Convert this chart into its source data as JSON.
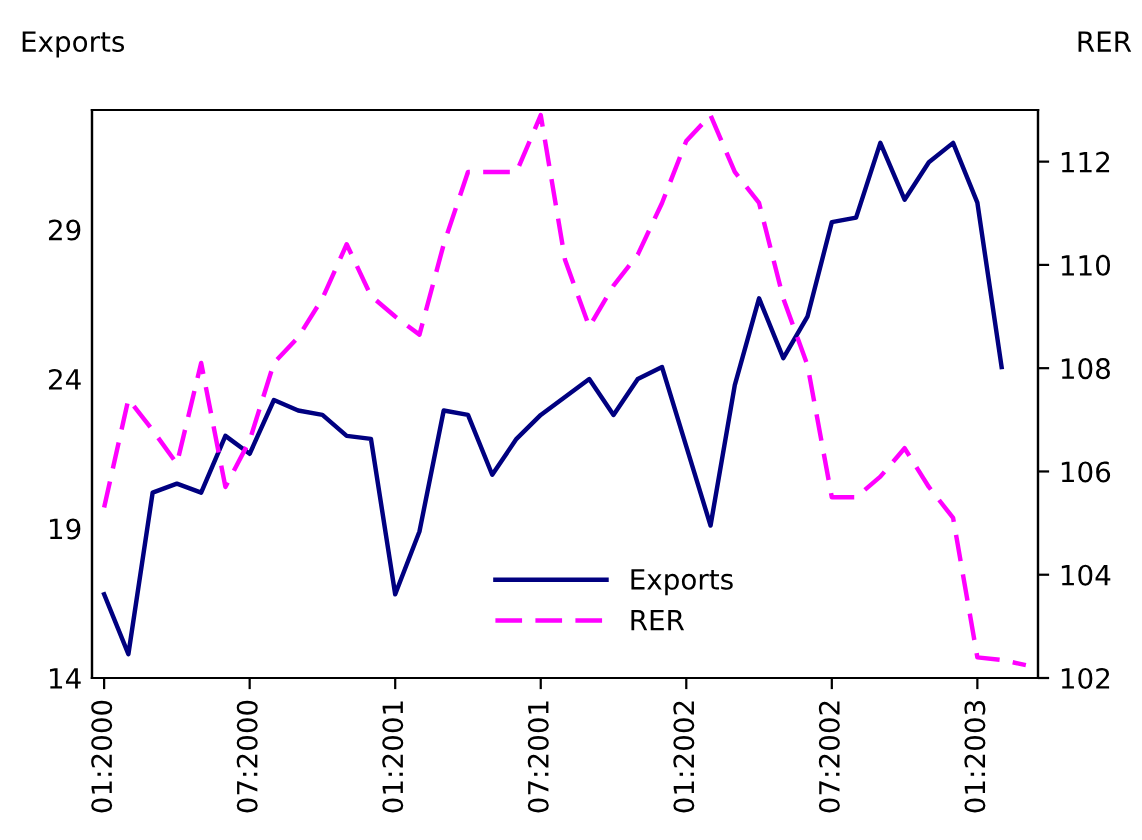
{
  "chart_data": {
    "type": "line",
    "xlabel": null,
    "ylabel": "Exports",
    "y2label": "RER",
    "categories": [
      "01:2000",
      null,
      null,
      null,
      null,
      null,
      "07:2000",
      null,
      null,
      null,
      null,
      null,
      "01:2001",
      null,
      null,
      null,
      null,
      null,
      "07:2001",
      null,
      null,
      null,
      null,
      null,
      "01:2002",
      null,
      null,
      null,
      null,
      null,
      "07:2002",
      null,
      null,
      null,
      null,
      null,
      "01:2003",
      null,
      null
    ],
    "series": [
      {
        "name": "Exports",
        "color": "#000080",
        "line_style": "solid",
        "values": [
          16.8,
          14.8,
          20.2,
          20.5,
          20.2,
          22.1,
          21.5,
          23.3,
          22.95,
          22.8,
          22.1,
          22.0,
          16.8,
          18.9,
          22.95,
          22.8,
          20.8,
          22.0,
          22.8,
          23.4,
          24.0,
          22.8,
          24.0,
          24.4,
          21.75,
          19.1,
          23.8,
          26.7,
          24.7,
          26.1,
          29.25,
          29.4,
          31.9,
          30.0,
          31.25,
          31.9,
          29.9,
          24.4,
          null
        ]
      },
      {
        "name": "RER",
        "color": "#ff00ff",
        "line_style": "dashed",
        "axis": "y2",
        "values": [
          105.3,
          107.4,
          106.8,
          106.15,
          108.1,
          105.7,
          106.6,
          108.1,
          108.6,
          109.35,
          110.4,
          109.4,
          109.0,
          108.65,
          110.4,
          111.8,
          111.8,
          111.8,
          112.9,
          110.1,
          108.8,
          109.6,
          110.2,
          111.2,
          112.4,
          112.9,
          111.8,
          111.2,
          109.35,
          108.05,
          105.5,
          105.5,
          105.9,
          106.45,
          105.7,
          105.1,
          102.4,
          102.35,
          102.25
        ]
      }
    ],
    "ylim": [
      14,
      33
    ],
    "yticks": [
      14,
      19,
      24,
      29
    ],
    "y2lim": [
      102,
      113
    ],
    "y2ticks": [
      102,
      104,
      106,
      108,
      110,
      112
    ],
    "grid": false,
    "legend": "bottom",
    "marker": "none"
  }
}
